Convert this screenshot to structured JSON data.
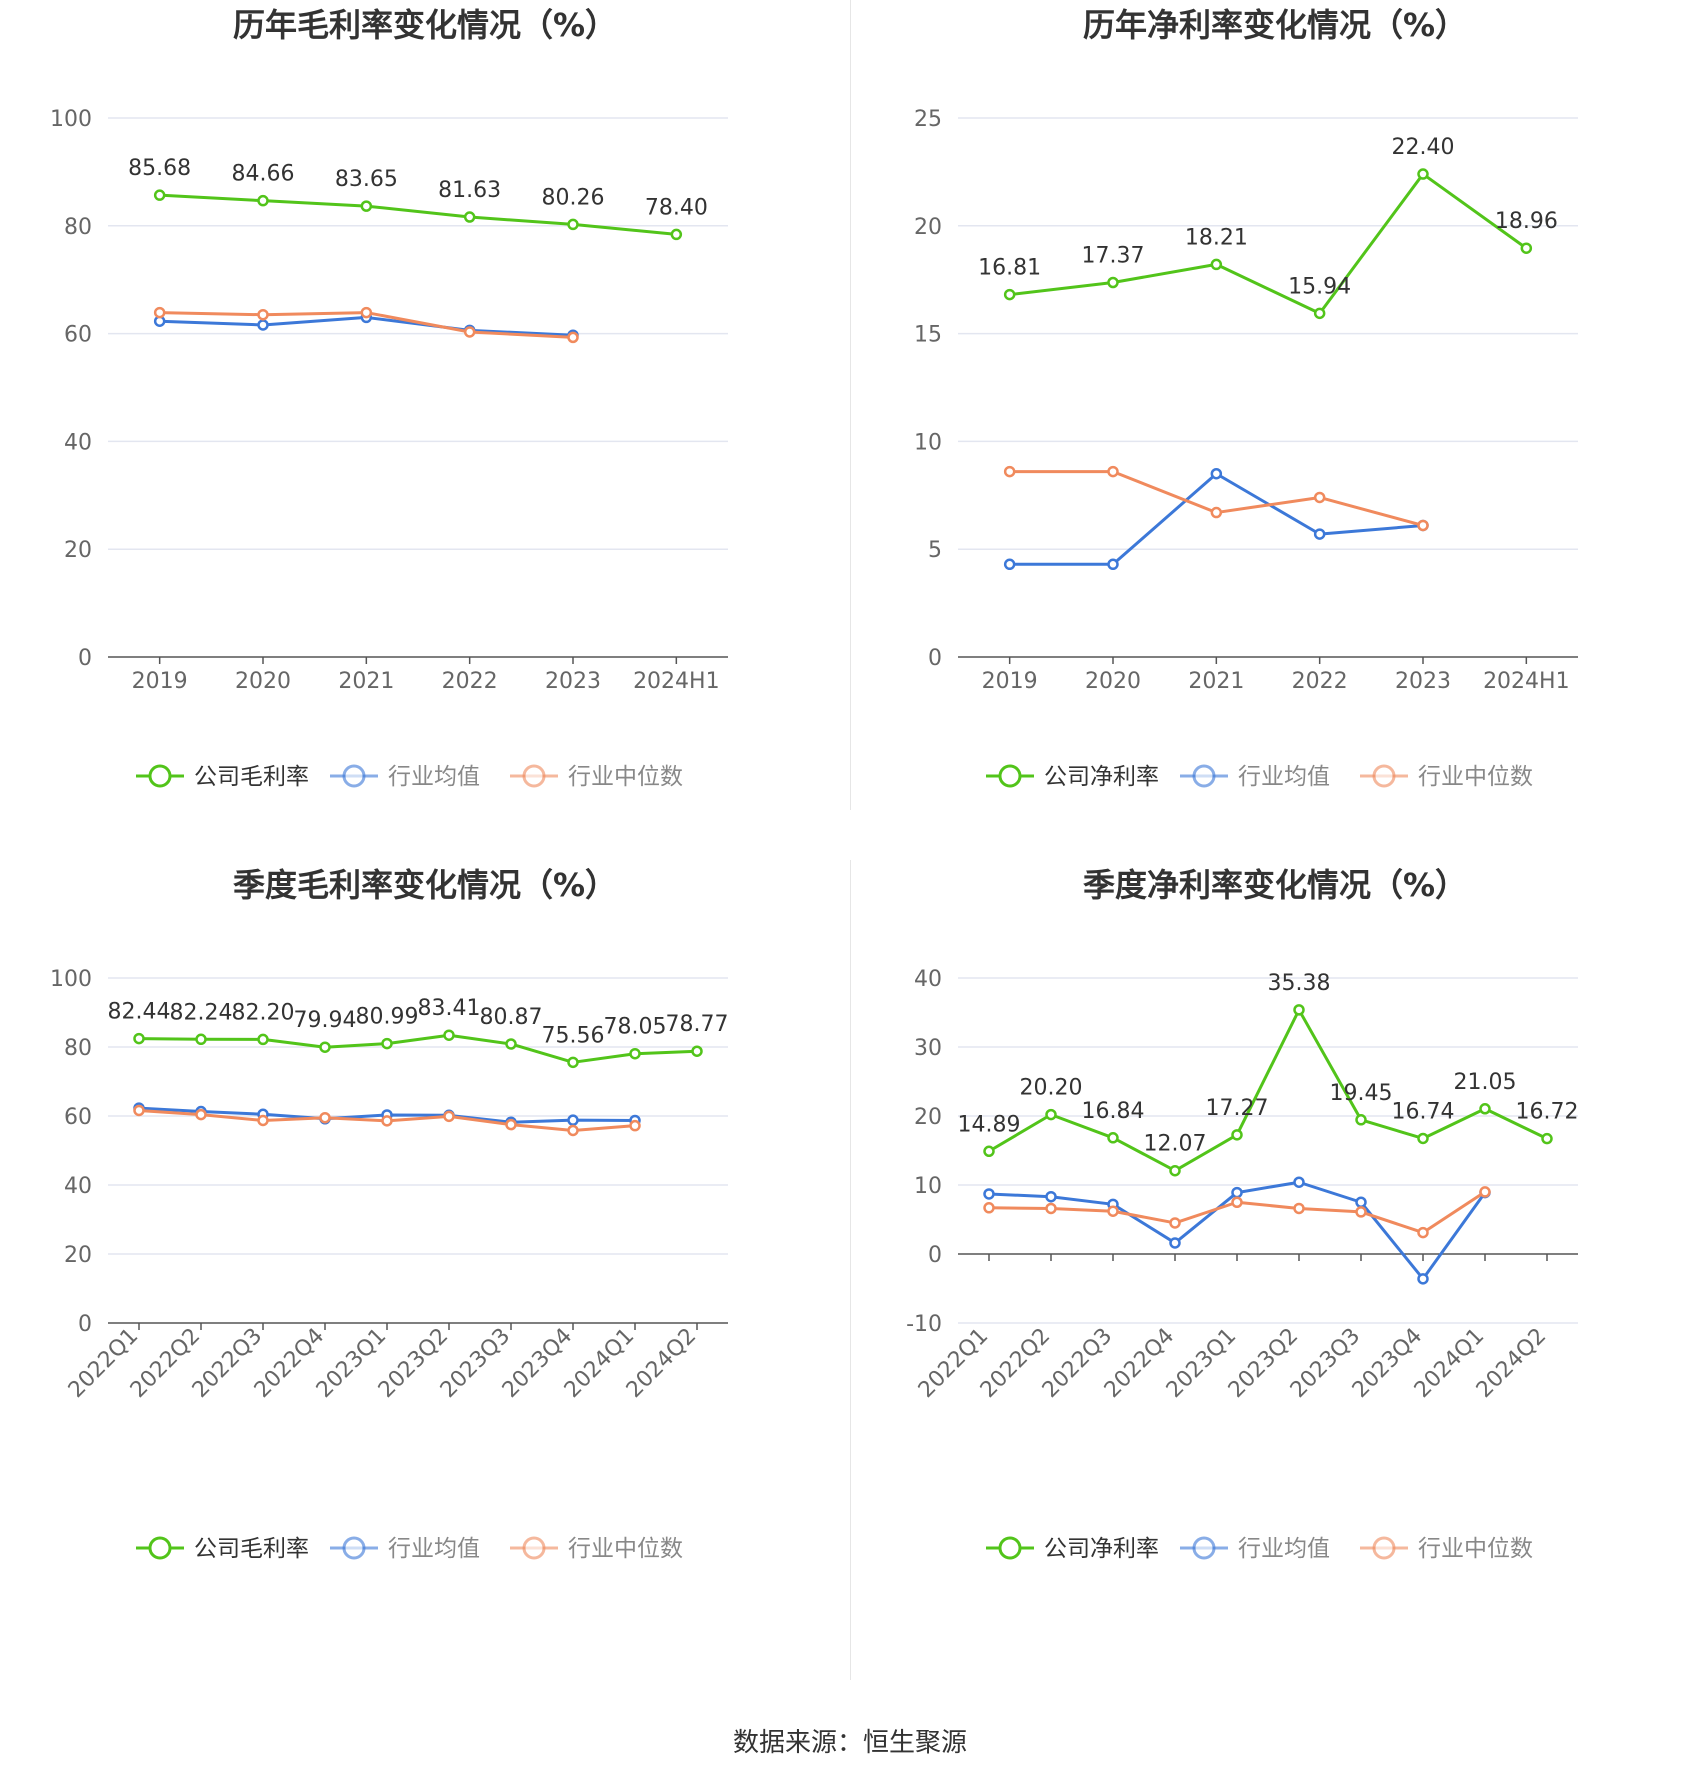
{
  "source": "数据来源：恒生聚源",
  "colors": {
    "company": "#52c41a",
    "avg": "#3c78d8",
    "median": "#f08a5d",
    "grid": "#e3e6f0",
    "axis": "#555555",
    "label": "#333333",
    "tick": "#666666",
    "legend_text_active": "#333333",
    "legend_text_inactive": "#888888"
  },
  "chart_data": [
    {
      "type": "line",
      "title": "历年毛利率变化情况（%）",
      "categories": [
        "2019",
        "2020",
        "2021",
        "2022",
        "2023",
        "2024H1"
      ],
      "ylim": [
        0,
        100
      ],
      "yticks": [
        0,
        20,
        40,
        60,
        80,
        100
      ],
      "grid": true,
      "legend_placement": "bottom",
      "rotate_x": false,
      "series": [
        {
          "name": "公司毛利率",
          "values": [
            85.68,
            84.66,
            83.65,
            81.63,
            80.26,
            78.4
          ],
          "labels": [
            "85.68",
            "84.66",
            "83.65",
            "81.63",
            "80.26",
            "78.40"
          ]
        },
        {
          "name": "行业均值",
          "values": [
            62.3,
            61.6,
            63.0,
            60.6,
            59.7,
            null
          ]
        },
        {
          "name": "行业中位数",
          "values": [
            63.9,
            63.5,
            63.9,
            60.3,
            59.3,
            null
          ]
        }
      ]
    },
    {
      "type": "line",
      "title": "历年净利率变化情况（%）",
      "categories": [
        "2019",
        "2020",
        "2021",
        "2022",
        "2023",
        "2024H1"
      ],
      "ylim": [
        0,
        25
      ],
      "yticks": [
        0,
        5,
        10,
        15,
        20,
        25
      ],
      "grid": true,
      "legend_placement": "bottom",
      "rotate_x": false,
      "series": [
        {
          "name": "公司净利率",
          "values": [
            16.81,
            17.37,
            18.21,
            15.94,
            22.4,
            18.96
          ],
          "labels": [
            "16.81",
            "17.37",
            "18.21",
            "15.94",
            "22.40",
            "18.96"
          ]
        },
        {
          "name": "行业均值",
          "values": [
            4.3,
            4.3,
            8.5,
            5.7,
            6.1,
            null
          ]
        },
        {
          "name": "行业中位数",
          "values": [
            8.6,
            8.6,
            6.7,
            7.4,
            6.1,
            null
          ]
        }
      ]
    },
    {
      "type": "line",
      "title": "季度毛利率变化情况（%）",
      "categories": [
        "2022Q1",
        "2022Q2",
        "2022Q3",
        "2022Q4",
        "2023Q1",
        "2023Q2",
        "2023Q3",
        "2023Q4",
        "2024Q1",
        "2024Q2"
      ],
      "ylim": [
        0,
        100
      ],
      "yticks": [
        0,
        20,
        40,
        60,
        80,
        100
      ],
      "grid": true,
      "legend_placement": "bottom",
      "rotate_x": true,
      "series": [
        {
          "name": "公司毛利率",
          "values": [
            82.44,
            82.24,
            82.2,
            79.94,
            80.99,
            83.41,
            80.87,
            75.56,
            78.05,
            78.77
          ],
          "labels": [
            "82.44",
            "82.24",
            "82.20",
            "79.94",
            "80.99",
            "83.41",
            "80.87",
            "75.56",
            "78.05",
            "78.77"
          ]
        },
        {
          "name": "行业均值",
          "values": [
            62.3,
            61.3,
            60.5,
            59.2,
            60.3,
            60.2,
            58.2,
            58.8,
            58.7,
            null
          ]
        },
        {
          "name": "行业中位数",
          "values": [
            61.6,
            60.4,
            58.7,
            59.5,
            58.6,
            59.9,
            57.5,
            55.8,
            57.2,
            null
          ]
        }
      ]
    },
    {
      "type": "line",
      "title": "季度净利率变化情况（%）",
      "categories": [
        "2022Q1",
        "2022Q2",
        "2022Q3",
        "2022Q4",
        "2023Q1",
        "2023Q2",
        "2023Q3",
        "2023Q4",
        "2024Q1",
        "2024Q2"
      ],
      "ylim": [
        -10,
        40
      ],
      "yticks": [
        -10,
        0,
        10,
        20,
        30,
        40
      ],
      "grid": true,
      "legend_placement": "bottom",
      "rotate_x": true,
      "series": [
        {
          "name": "公司净利率",
          "values": [
            14.89,
            20.2,
            16.84,
            12.07,
            17.27,
            35.38,
            19.45,
            16.74,
            21.05,
            16.72
          ],
          "labels": [
            "14.89",
            "20.20",
            "16.84",
            "12.07",
            "17.27",
            "35.38",
            "19.45",
            "16.74",
            "21.05",
            "16.72"
          ]
        },
        {
          "name": "行业均值",
          "values": [
            8.7,
            8.3,
            7.2,
            1.6,
            8.9,
            10.4,
            7.5,
            -3.6,
            8.9,
            null
          ]
        },
        {
          "name": "行业中位数",
          "values": [
            6.7,
            6.6,
            6.2,
            4.5,
            7.5,
            6.6,
            6.1,
            3.1,
            9.0,
            null
          ]
        }
      ]
    }
  ]
}
